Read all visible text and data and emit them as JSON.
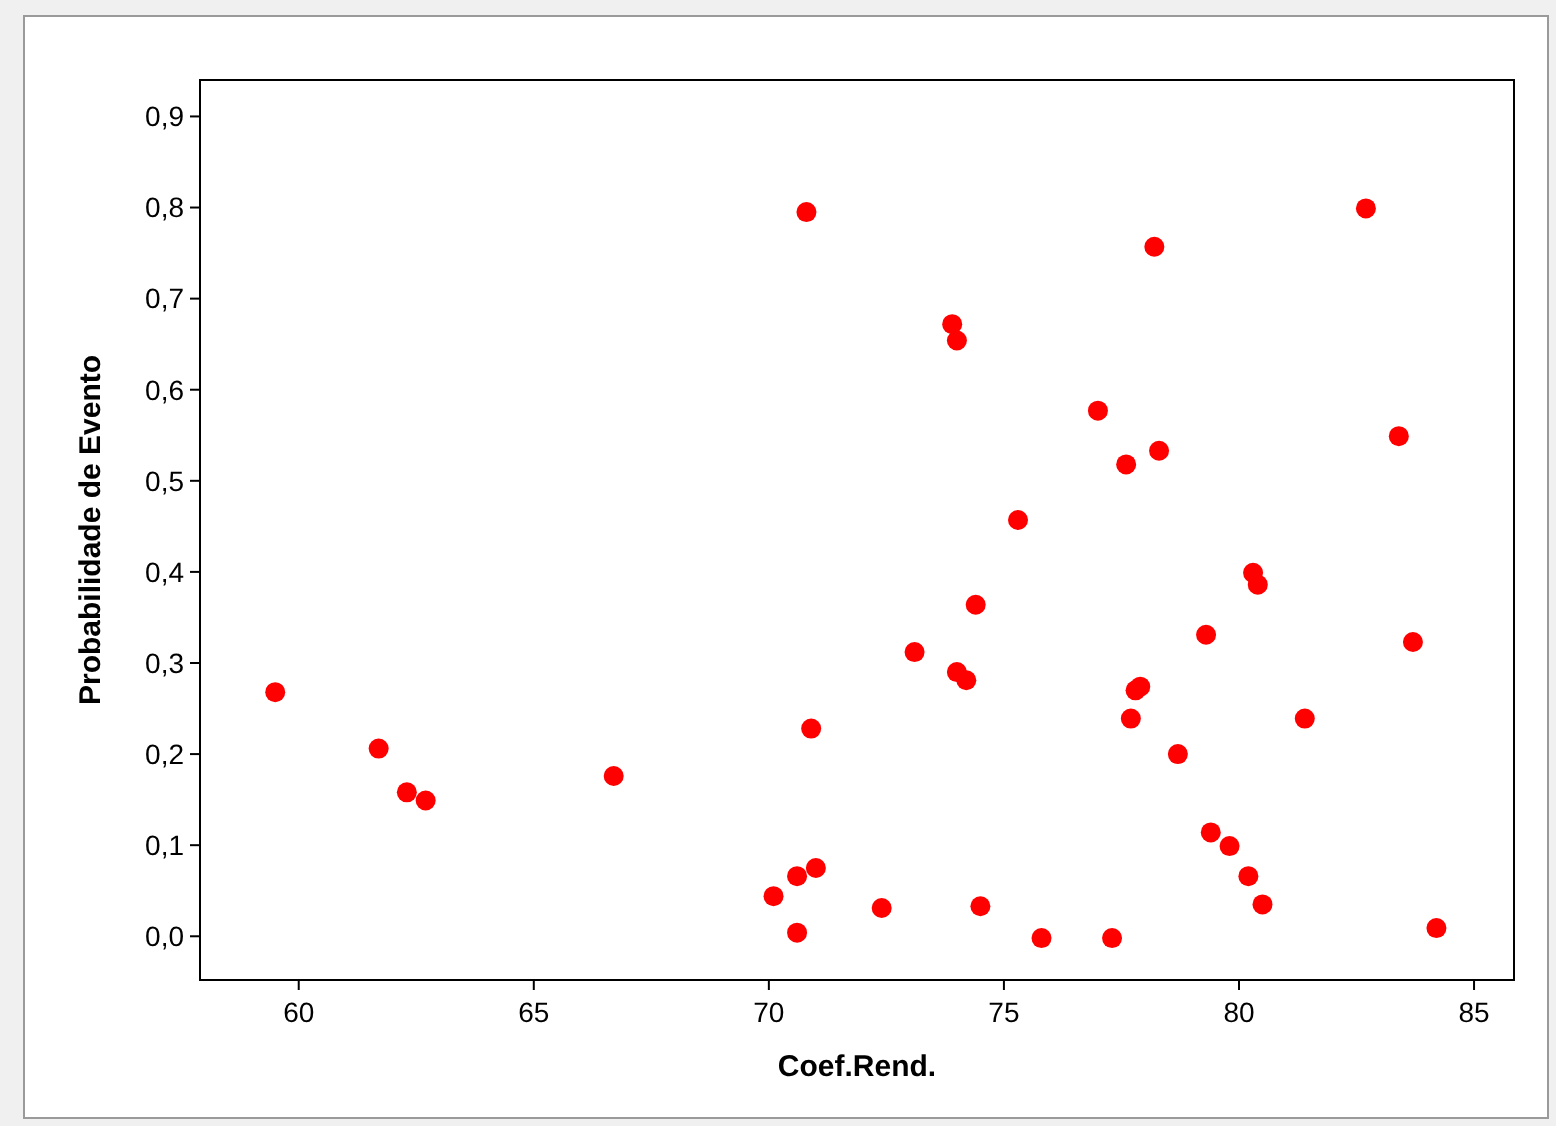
{
  "chart_data": {
    "type": "scatter",
    "xlabel": "Coef.Rend.",
    "ylabel": "Probabilidade de Evento",
    "xlim": [
      57.9,
      85.85
    ],
    "ylim": [
      -0.048,
      0.94
    ],
    "xticks": [
      60,
      65,
      70,
      75,
      80,
      85
    ],
    "yticks": [
      {
        "value": 0,
        "label": "0,0"
      },
      {
        "value": 0.1,
        "label": "0,1"
      },
      {
        "value": 0.2,
        "label": "0,2"
      },
      {
        "value": 0.3,
        "label": "0,3"
      },
      {
        "value": 0.4,
        "label": "0,4"
      },
      {
        "value": 0.5,
        "label": "0,5"
      },
      {
        "value": 0.6,
        "label": "0,6"
      },
      {
        "value": 0.7,
        "label": "0,7"
      },
      {
        "value": 0.8,
        "label": "0,8"
      },
      {
        "value": 0.9,
        "label": "0,9"
      }
    ],
    "marker": "circle",
    "grid": false,
    "series": [
      {
        "color": "#ff0000",
        "x": [
          59.5,
          61.7,
          62.3,
          62.7,
          66.7,
          70.1,
          70.6,
          70.6,
          70.8,
          70.9,
          71.0,
          72.4,
          73.1,
          73.9,
          74.0,
          74.0,
          74.2,
          74.4,
          74.5,
          75.3,
          75.8,
          77.0,
          77.3,
          77.6,
          77.7,
          77.8,
          77.9,
          78.2,
          78.3,
          78.7,
          79.3,
          79.4,
          79.8,
          80.2,
          80.3,
          80.4,
          80.5,
          81.4,
          82.7,
          83.4,
          83.7,
          84.2
        ],
        "values": [
          0.268,
          0.206,
          0.158,
          0.149,
          0.176,
          0.044,
          0.066,
          0.004,
          0.795,
          0.228,
          0.075,
          0.031,
          0.312,
          0.672,
          0.654,
          0.29,
          0.281,
          0.364,
          0.033,
          0.457,
          -0.002,
          0.577,
          -0.002,
          0.518,
          0.239,
          0.27,
          0.274,
          0.757,
          0.533,
          0.2,
          0.331,
          0.114,
          0.099,
          0.066,
          0.399,
          0.386,
          0.035,
          0.239,
          0.799,
          0.549,
          0.323,
          0.009
        ]
      }
    ]
  }
}
